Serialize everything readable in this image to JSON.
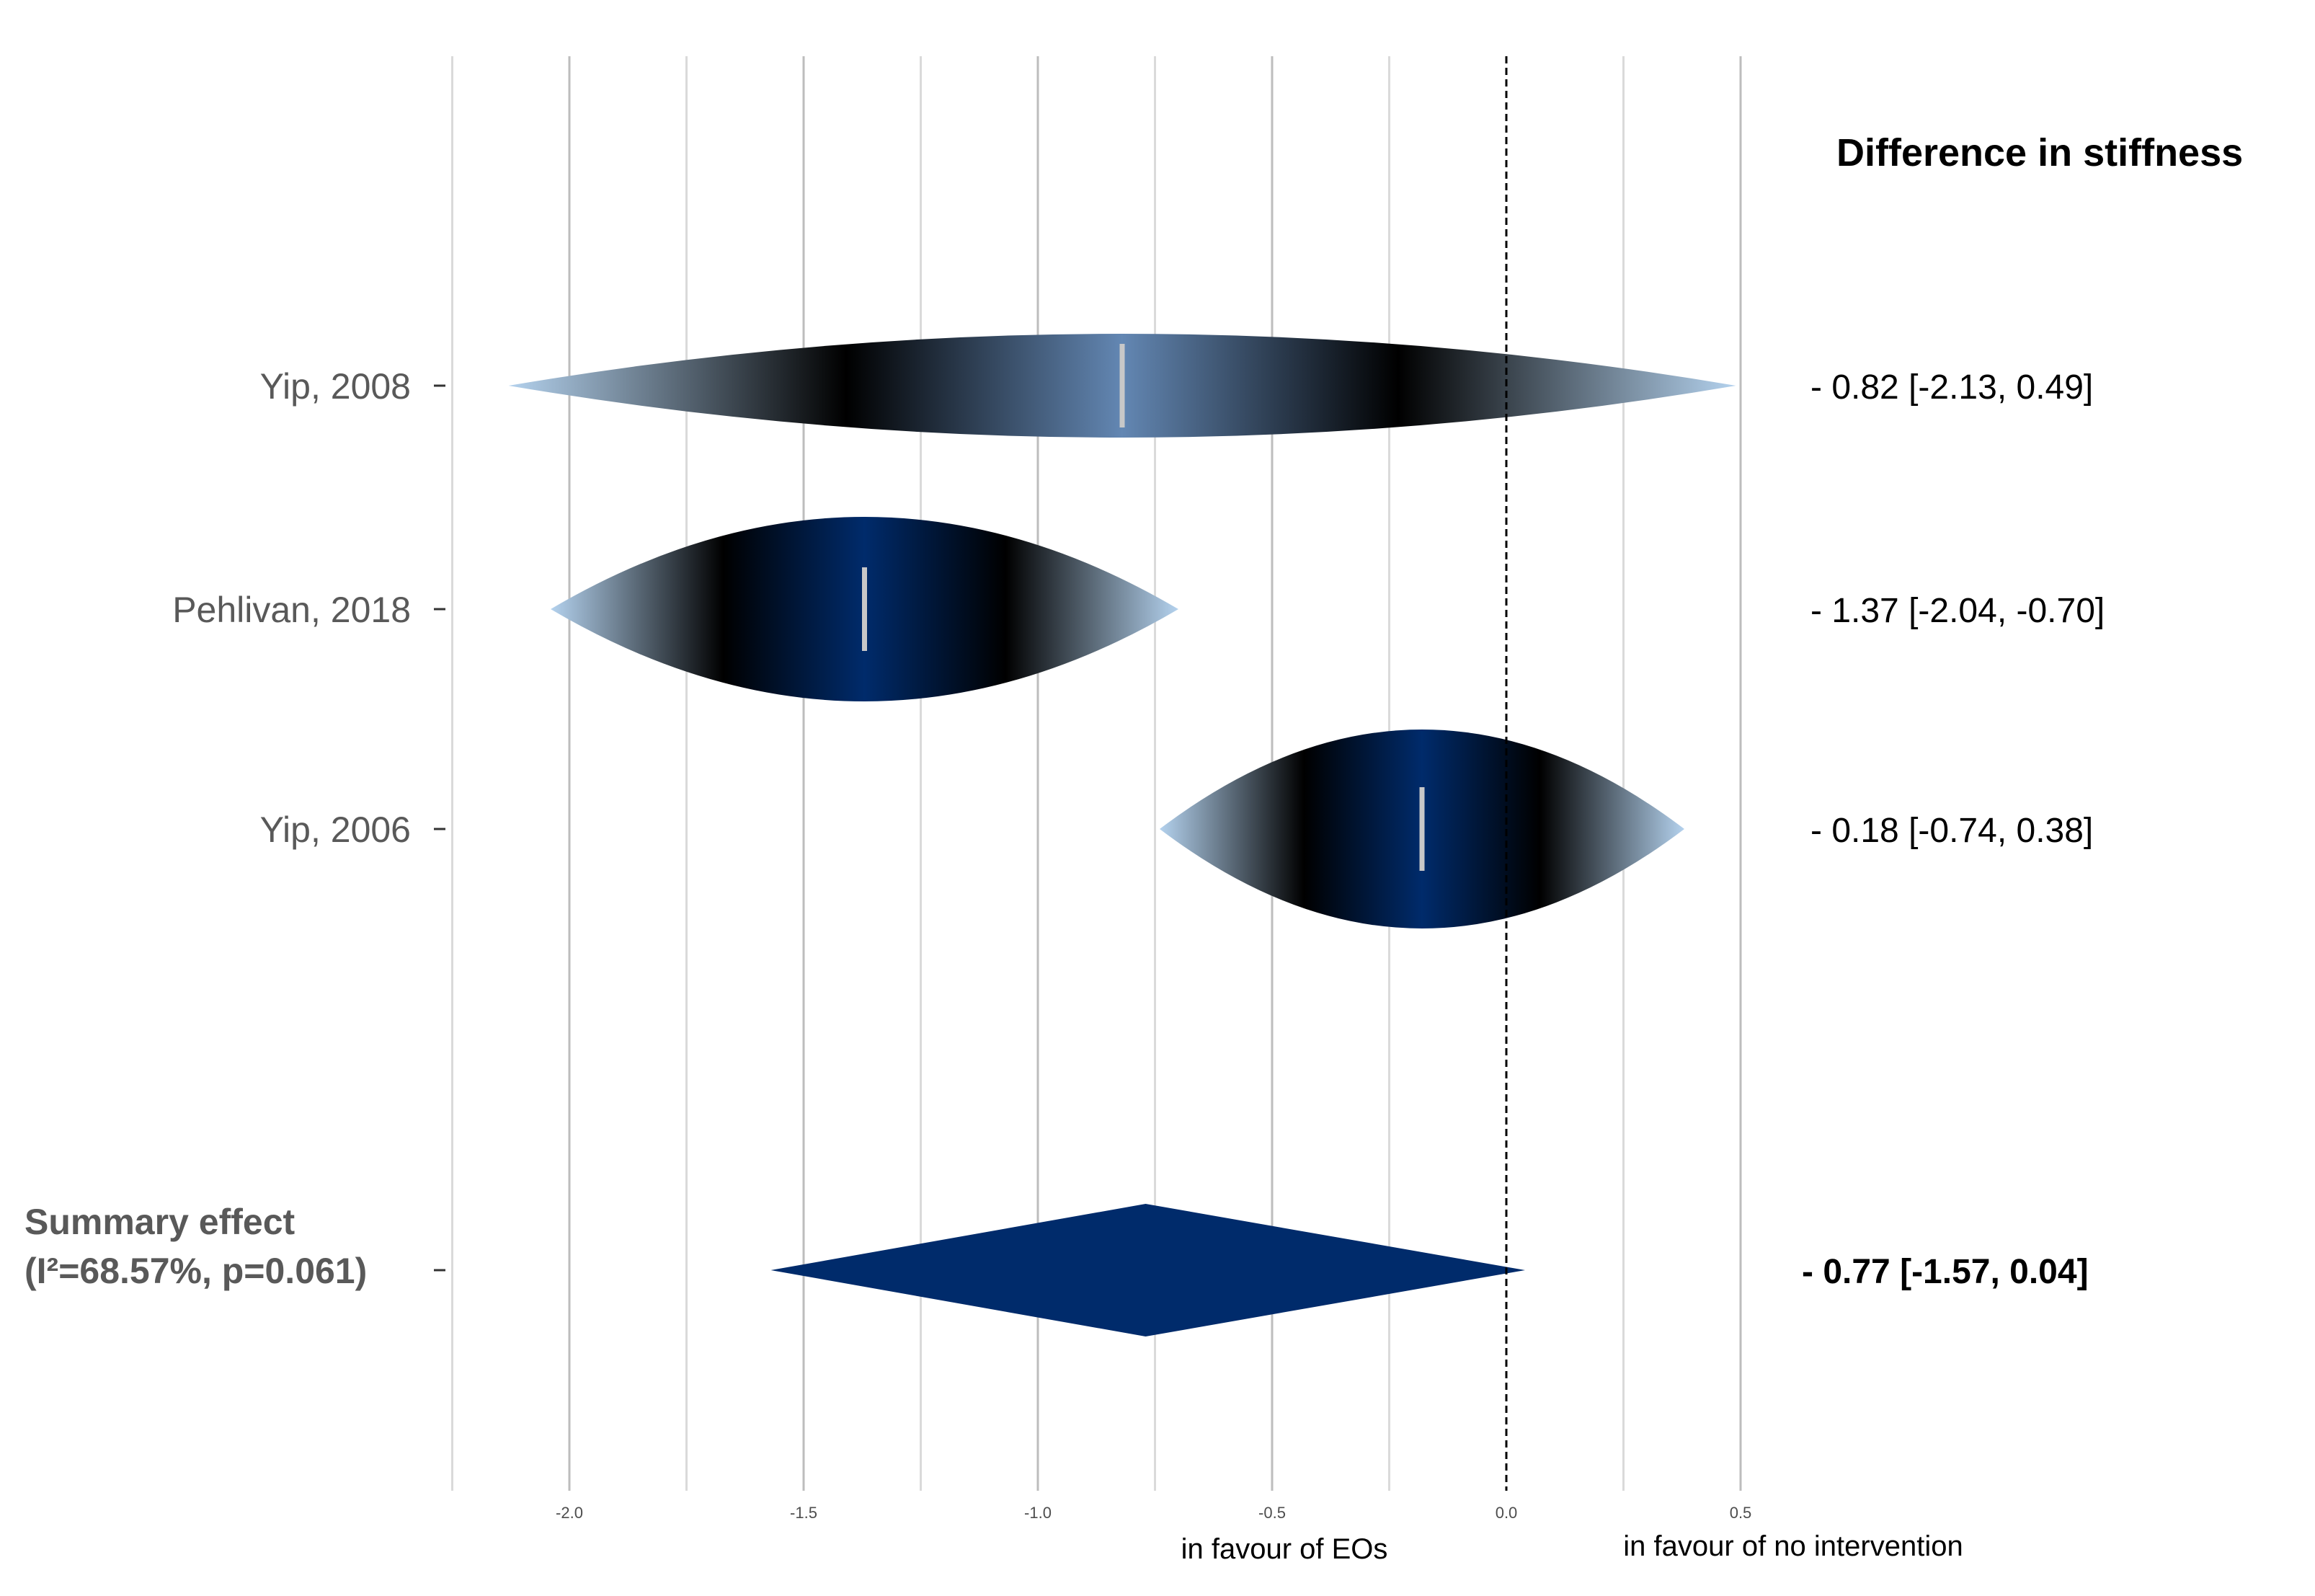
{
  "chart_data": {
    "type": "forest",
    "title": "Difference in stiffness",
    "x_axis": {
      "range": [
        -2.25,
        0.55
      ],
      "major_ticks": [
        -2.0,
        -1.5,
        -1.0,
        -0.5,
        0.0,
        0.5
      ],
      "minor_gridlines": [
        -2.25,
        -1.75,
        -1.25,
        -0.75,
        -0.25,
        0.25
      ],
      "tick_labels": [
        "-2.0",
        "-1.5",
        "-1.0",
        "-0.5",
        "0.0",
        "0.5"
      ],
      "reference_line": 0.0,
      "left_favour_label": "in favour of EOs",
      "right_favour_label": "in favour of no intervention"
    },
    "studies": [
      {
        "name": "Yip, 2008",
        "estimate": -0.82,
        "ci_low": -2.13,
        "ci_high": 0.49,
        "estimate_text": "- 0.82 [-2.13, 0.49]",
        "precision": 0.45
      },
      {
        "name": "Pehlivan, 2018",
        "estimate": -1.37,
        "ci_low": -2.04,
        "ci_high": -0.7,
        "estimate_text": "- 1.37 [-2.04, -0.70]",
        "precision": 1.0
      },
      {
        "name": "Yip, 2006",
        "estimate": -0.18,
        "ci_low": -0.74,
        "ci_high": 0.38,
        "estimate_text": "- 0.18 [-0.74, 0.38]",
        "precision": 1.0
      }
    ],
    "summary": {
      "label_line1": "Summary effect",
      "label_line2": "(I²=68.57%, p=0.061)",
      "estimate": -0.77,
      "ci_low": -1.57,
      "ci_high": 0.04,
      "estimate_text": "- 0.77 [-1.57, 0.04]"
    },
    "colors": {
      "dark": "#002b6b",
      "light": "#b4d2ee",
      "estimate_marker": "#c8c8c8",
      "major_grid": "#bdbdbd",
      "minor_grid": "#dadada",
      "reference": "#000000"
    }
  }
}
